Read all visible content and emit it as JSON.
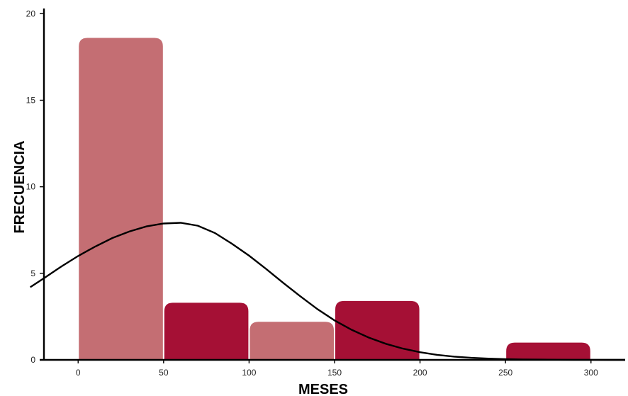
{
  "chart_data": {
    "type": "bar",
    "title": "",
    "xlabel": "MESES",
    "ylabel": "FRECUENCIA",
    "xlim": [
      -20,
      320
    ],
    "ylim": [
      0,
      20.3
    ],
    "grid": false,
    "x_ticks": [
      "0",
      "50",
      "100",
      "150",
      "200",
      "250",
      "300"
    ],
    "y_ticks": [
      "0",
      "5",
      "10",
      "15",
      "20"
    ],
    "bins": [
      {
        "x0": 0,
        "x1": 50,
        "value": 18.6,
        "color": "#c46e73"
      },
      {
        "x0": 50,
        "x1": 100,
        "value": 3.3,
        "color": "#a51035"
      },
      {
        "x0": 100,
        "x1": 150,
        "value": 2.2,
        "color": "#c46e73"
      },
      {
        "x0": 150,
        "x1": 200,
        "value": 3.4,
        "color": "#a51035"
      },
      {
        "x0": 250,
        "x1": 300,
        "value": 1.0,
        "color": "#a51035"
      }
    ],
    "density_curve": {
      "color": "#000000",
      "points": [
        [
          -28,
          4.2
        ],
        [
          -20,
          4.72
        ],
        [
          -10,
          5.38
        ],
        [
          0,
          6.0
        ],
        [
          10,
          6.55
        ],
        [
          20,
          7.04
        ],
        [
          30,
          7.42
        ],
        [
          40,
          7.71
        ],
        [
          50,
          7.88
        ],
        [
          60,
          7.92
        ],
        [
          70,
          7.75
        ],
        [
          80,
          7.33
        ],
        [
          90,
          6.71
        ],
        [
          100,
          6.02
        ],
        [
          110,
          5.25
        ],
        [
          120,
          4.45
        ],
        [
          130,
          3.67
        ],
        [
          140,
          2.93
        ],
        [
          150,
          2.28
        ],
        [
          160,
          1.74
        ],
        [
          170,
          1.29
        ],
        [
          180,
          0.93
        ],
        [
          190,
          0.65
        ],
        [
          200,
          0.44
        ],
        [
          210,
          0.29
        ],
        [
          220,
          0.19
        ],
        [
          230,
          0.12
        ],
        [
          240,
          0.075
        ],
        [
          250,
          0.045
        ],
        [
          260,
          0.026
        ],
        [
          270,
          0.015
        ],
        [
          280,
          0.009
        ],
        [
          290,
          0.005
        ],
        [
          300,
          0.003
        ],
        [
          310,
          0.002
        ],
        [
          320,
          0.001
        ]
      ]
    }
  }
}
